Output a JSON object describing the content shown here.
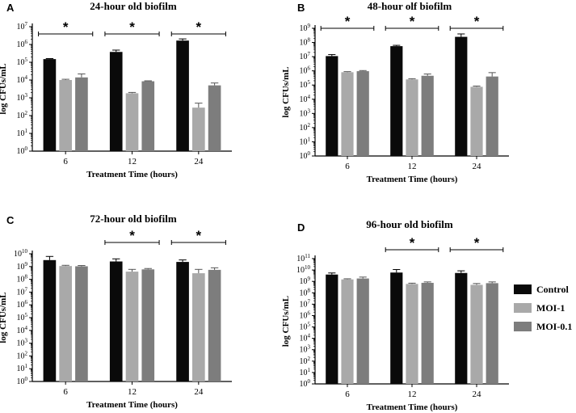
{
  "colors": {
    "control": "#0a0a0a",
    "moi1": "#a9a9a9",
    "moi01": "#7d7d7d",
    "axis": "#000000"
  },
  "legend": {
    "entries": [
      {
        "name": "Control",
        "color": "#0a0a0a"
      },
      {
        "name": "MOI-1",
        "color": "#a9a9a9"
      },
      {
        "name": "MOI-0.1",
        "color": "#7d7d7d"
      }
    ]
  },
  "chart_data": [
    {
      "type": "bar",
      "panel_label": "A",
      "title": "24-hour old biofilm",
      "xlabel": "Treatment Time (hours)",
      "ylabel": "log CFUs/mL",
      "yscale": "log10",
      "ylim_exp": [
        0,
        7
      ],
      "categories": [
        "6",
        "12",
        "24"
      ],
      "series": [
        {
          "name": "Control",
          "values": [
            150000,
            380000,
            1650000
          ],
          "errors": [
            10000,
            100000,
            400000
          ]
        },
        {
          "name": "MOI-1",
          "values": [
            10000,
            1800,
            280
          ],
          "errors": [
            1000,
            200,
            220
          ]
        },
        {
          "name": "MOI-0.1",
          "values": [
            14000,
            8500,
            5000
          ],
          "errors": [
            8000,
            500,
            1800
          ]
        }
      ],
      "significance": [
        {
          "group": "6",
          "label": "*"
        },
        {
          "group": "12",
          "label": "*"
        },
        {
          "group": "24",
          "label": "*"
        }
      ]
    },
    {
      "type": "bar",
      "panel_label": "B",
      "title": "48-hour olf biofilm",
      "xlabel": "Treatment Time (hours)",
      "ylabel": "log CFUs/mL",
      "yscale": "log10",
      "ylim_exp": [
        0,
        9
      ],
      "categories": [
        "6",
        "12",
        "24"
      ],
      "series": [
        {
          "name": "Control",
          "values": [
            11000000,
            55000000,
            250000000
          ],
          "errors": [
            3000000,
            8000000,
            150000000
          ]
        },
        {
          "name": "MOI-1",
          "values": [
            800000,
            250000,
            75000
          ],
          "errors": [
            80000,
            30000,
            10000
          ]
        },
        {
          "name": "MOI-0.1",
          "values": [
            950000,
            450000,
            400000
          ],
          "errors": [
            100000,
            150000,
            350000
          ]
        }
      ],
      "significance": [
        {
          "group": "6",
          "label": "*"
        },
        {
          "group": "12",
          "label": "*"
        },
        {
          "group": "24",
          "label": "*"
        }
      ]
    },
    {
      "type": "bar",
      "panel_label": "C",
      "title": "72-hour old biofilm",
      "xlabel": "Treatment Time (hours)",
      "ylabel": "log CFUs/mL",
      "yscale": "log10",
      "ylim_exp": [
        0,
        10
      ],
      "categories": [
        "6",
        "12",
        "24"
      ],
      "series": [
        {
          "name": "Control",
          "values": [
            3200000000,
            2500000000,
            2300000000
          ],
          "errors": [
            3000000000,
            1500000000,
            1000000000
          ]
        },
        {
          "name": "MOI-1",
          "values": [
            1100000000,
            400000000,
            300000000
          ],
          "errors": [
            150000000,
            200000000,
            300000000
          ]
        },
        {
          "name": "MOI-0.1",
          "values": [
            1050000000,
            600000000,
            550000000
          ],
          "errors": [
            150000000,
            100000000,
            250000000
          ]
        }
      ],
      "significance": [
        {
          "group": "12",
          "label": "*"
        },
        {
          "group": "24",
          "label": "*"
        }
      ]
    },
    {
      "type": "bar",
      "panel_label": "D",
      "title": "96-hour old biofilm",
      "xlabel": "Treatment Time (hours)",
      "ylabel": "log CFUs/mL",
      "yscale": "log10",
      "ylim_exp": [
        0,
        11
      ],
      "categories": [
        "6",
        "12",
        "24"
      ],
      "series": [
        {
          "name": "Control",
          "values": [
            4000000000,
            6000000000,
            5500000000
          ],
          "errors": [
            1500000000,
            5000000000,
            3000000000
          ]
        },
        {
          "name": "MOI-1",
          "values": [
            1500000000,
            600000000,
            500000000
          ],
          "errors": [
            200000000,
            100000000,
            150000000
          ]
        },
        {
          "name": "MOI-0.1",
          "values": [
            1800000000,
            750000000,
            700000000
          ],
          "errors": [
            600000000,
            150000000,
            200000000
          ]
        }
      ],
      "significance": [
        {
          "group": "12",
          "label": "*"
        },
        {
          "group": "24",
          "label": "*"
        }
      ]
    }
  ]
}
